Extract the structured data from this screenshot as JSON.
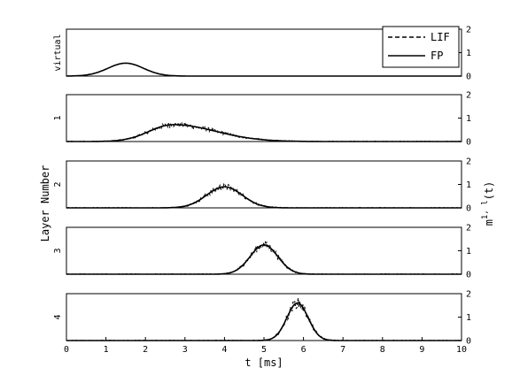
{
  "chart_data": {
    "type": "line",
    "xlabel": "t [ms]",
    "ylabel_left": "Layer Number",
    "ylabel_right": "m^{1,l}(t)",
    "ylabel_right_base": "m",
    "ylabel_right_sup": "1, l",
    "ylabel_right_tail": "(t)",
    "xlim": [
      0,
      10
    ],
    "xticks": [
      "0",
      "1",
      "2",
      "3",
      "4",
      "5",
      "6",
      "7",
      "8",
      "9",
      "10"
    ],
    "ylim": [
      0,
      2
    ],
    "yticks": [
      "0",
      "1",
      "2"
    ],
    "legend": {
      "position": "top-right",
      "entries": [
        {
          "label": "LIF",
          "style": "dashed"
        },
        {
          "label": "FP",
          "style": "solid"
        }
      ]
    },
    "panels": [
      {
        "label": "virtual",
        "peak_t": 1.5,
        "peak_m": 0.55,
        "width_ms": 0.45,
        "noisy": false,
        "series": [
          {
            "name": "FP",
            "x": [
              0,
              0.5,
              1.0,
              1.5,
              2.0,
              2.5,
              3.0
            ],
            "y": [
              0.0,
              0.05,
              0.3,
              0.55,
              0.3,
              0.05,
              0.0
            ]
          }
        ]
      },
      {
        "label": "1",
        "peak_t": 2.7,
        "peak_m": 0.72,
        "width_ms": 0.6,
        "noisy": true,
        "series": [
          {
            "name": "FP",
            "x": [
              1.5,
              2.0,
              2.5,
              2.7,
              3.0,
              3.5,
              4.0,
              5.0
            ],
            "y": [
              0.05,
              0.35,
              0.65,
              0.72,
              0.65,
              0.42,
              0.22,
              0.03
            ]
          }
        ]
      },
      {
        "label": "2",
        "peak_t": 4.0,
        "peak_m": 0.9,
        "width_ms": 0.45,
        "noisy": true,
        "series": [
          {
            "name": "FP",
            "x": [
              3.0,
              3.5,
              4.0,
              4.5,
              5.0,
              5.5
            ],
            "y": [
              0.05,
              0.5,
              0.9,
              0.55,
              0.15,
              0.01
            ]
          }
        ]
      },
      {
        "label": "3",
        "peak_t": 5.0,
        "peak_m": 1.25,
        "width_ms": 0.35,
        "noisy": true,
        "series": [
          {
            "name": "FP",
            "x": [
              4.2,
              4.6,
              5.0,
              5.4,
              5.8
            ],
            "y": [
              0.05,
              0.6,
              1.25,
              0.7,
              0.05
            ]
          }
        ]
      },
      {
        "label": "4",
        "peak_t": 5.85,
        "peak_m": 1.6,
        "width_ms": 0.27,
        "noisy": true,
        "series": [
          {
            "name": "FP",
            "x": [
              5.2,
              5.5,
              5.85,
              6.2,
              6.6
            ],
            "y": [
              0.05,
              0.6,
              1.6,
              0.75,
              0.05
            ]
          }
        ]
      }
    ]
  }
}
